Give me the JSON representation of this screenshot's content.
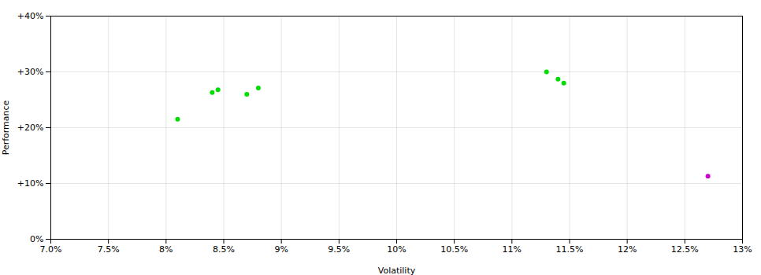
{
  "chart_data": {
    "type": "scatter",
    "xlabel": "Volatility",
    "ylabel": "Performance",
    "series": [
      {
        "color": "#00dd00",
        "x": [
          0.081,
          0.084,
          0.0845,
          0.088,
          0.087,
          0.113,
          0.114,
          0.1145
        ],
        "values": [
          0.215,
          0.263,
          0.268,
          0.271,
          0.26,
          0.3,
          0.287,
          0.28
        ]
      },
      {
        "color": "#cc00cc",
        "x": [
          0.127
        ],
        "values": [
          0.113
        ]
      }
    ],
    "xlim": [
      0.07,
      0.13
    ],
    "ylim": [
      0.0,
      0.4
    ],
    "xticks": [
      {
        "value": 0.07,
        "label": "7.0%"
      },
      {
        "value": 0.075,
        "label": "7.5%"
      },
      {
        "value": 0.08,
        "label": "8%"
      },
      {
        "value": 0.085,
        "label": "8.5%"
      },
      {
        "value": 0.09,
        "label": "9%"
      },
      {
        "value": 0.095,
        "label": "9.5%"
      },
      {
        "value": 0.1,
        "label": "10%"
      },
      {
        "value": 0.105,
        "label": "10.5%"
      },
      {
        "value": 0.11,
        "label": "11%"
      },
      {
        "value": 0.115,
        "label": "11.5%"
      },
      {
        "value": 0.12,
        "label": "12%"
      },
      {
        "value": 0.125,
        "label": "12.5%"
      },
      {
        "value": 0.13,
        "label": "13%"
      }
    ],
    "yticks": [
      {
        "value": 0.0,
        "label": "0%"
      },
      {
        "value": 0.1,
        "label": "+10%"
      },
      {
        "value": 0.2,
        "label": "+20%"
      },
      {
        "value": 0.3,
        "label": "+30%"
      },
      {
        "value": 0.4,
        "label": "+40%"
      }
    ],
    "grid": true
  }
}
